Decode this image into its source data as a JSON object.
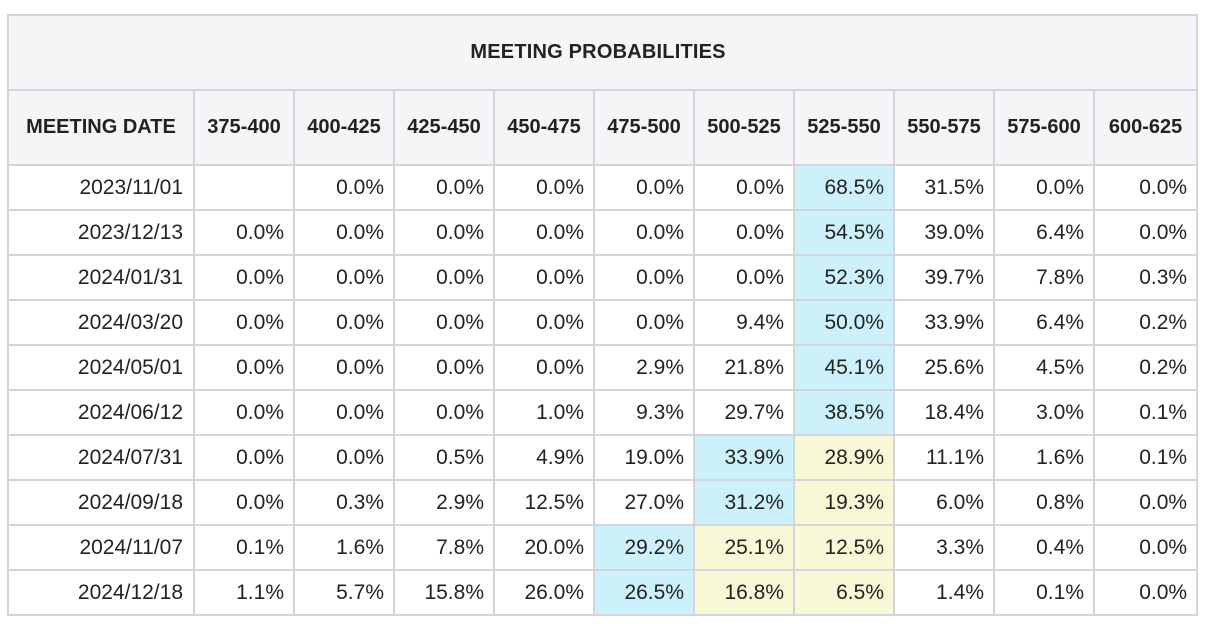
{
  "table": {
    "title": "MEETING PROBABILITIES",
    "date_header": "MEETING DATE",
    "columns": [
      "375-400",
      "400-425",
      "425-450",
      "450-475",
      "475-500",
      "500-525",
      "525-550",
      "550-575",
      "575-600",
      "600-625"
    ],
    "rows": [
      {
        "date": "2023/11/01",
        "values": [
          "",
          "0.0%",
          "0.0%",
          "0.0%",
          "0.0%",
          "0.0%",
          "68.5%",
          "31.5%",
          "0.0%",
          "0.0%"
        ],
        "highlight": {
          "6": "blue"
        }
      },
      {
        "date": "2023/12/13",
        "values": [
          "0.0%",
          "0.0%",
          "0.0%",
          "0.0%",
          "0.0%",
          "0.0%",
          "54.5%",
          "39.0%",
          "6.4%",
          "0.0%"
        ],
        "highlight": {
          "6": "blue"
        }
      },
      {
        "date": "2024/01/31",
        "values": [
          "0.0%",
          "0.0%",
          "0.0%",
          "0.0%",
          "0.0%",
          "0.0%",
          "52.3%",
          "39.7%",
          "7.8%",
          "0.3%"
        ],
        "highlight": {
          "6": "blue"
        }
      },
      {
        "date": "2024/03/20",
        "values": [
          "0.0%",
          "0.0%",
          "0.0%",
          "0.0%",
          "0.0%",
          "9.4%",
          "50.0%",
          "33.9%",
          "6.4%",
          "0.2%"
        ],
        "highlight": {
          "6": "blue"
        }
      },
      {
        "date": "2024/05/01",
        "values": [
          "0.0%",
          "0.0%",
          "0.0%",
          "0.0%",
          "2.9%",
          "21.8%",
          "45.1%",
          "25.6%",
          "4.5%",
          "0.2%"
        ],
        "highlight": {
          "6": "blue"
        }
      },
      {
        "date": "2024/06/12",
        "values": [
          "0.0%",
          "0.0%",
          "0.0%",
          "1.0%",
          "9.3%",
          "29.7%",
          "38.5%",
          "18.4%",
          "3.0%",
          "0.1%"
        ],
        "highlight": {
          "6": "blue"
        }
      },
      {
        "date": "2024/07/31",
        "values": [
          "0.0%",
          "0.0%",
          "0.5%",
          "4.9%",
          "19.0%",
          "33.9%",
          "28.9%",
          "11.1%",
          "1.6%",
          "0.1%"
        ],
        "highlight": {
          "5": "blue",
          "6": "yellow"
        }
      },
      {
        "date": "2024/09/18",
        "values": [
          "0.0%",
          "0.3%",
          "2.9%",
          "12.5%",
          "27.0%",
          "31.2%",
          "19.3%",
          "6.0%",
          "0.8%",
          "0.0%"
        ],
        "highlight": {
          "5": "blue",
          "6": "yellow"
        }
      },
      {
        "date": "2024/11/07",
        "values": [
          "0.1%",
          "1.6%",
          "7.8%",
          "20.0%",
          "29.2%",
          "25.1%",
          "12.5%",
          "3.3%",
          "0.4%",
          "0.0%"
        ],
        "highlight": {
          "4": "blue",
          "5": "yellow",
          "6": "yellow"
        }
      },
      {
        "date": "2024/12/18",
        "values": [
          "1.1%",
          "5.7%",
          "15.8%",
          "26.0%",
          "26.5%",
          "16.8%",
          "6.5%",
          "1.4%",
          "0.1%",
          "0.0%"
        ],
        "highlight": {
          "4": "blue",
          "5": "yellow",
          "6": "yellow"
        }
      }
    ]
  },
  "colors": {
    "highlight_blue": "#cdf1fb",
    "highlight_yellow": "#f8f8d6",
    "header_bg": "#f5f5f7",
    "border": "#d4d4dc",
    "text": "#222222"
  }
}
